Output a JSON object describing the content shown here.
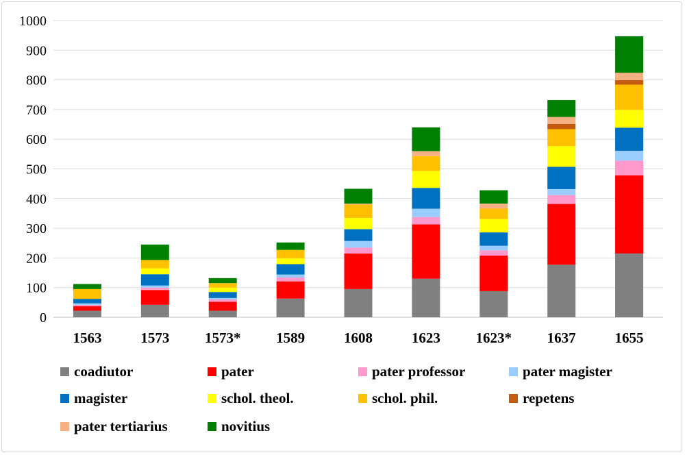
{
  "chart_data": {
    "type": "bar",
    "stacked": true,
    "title": "",
    "xlabel": "",
    "ylabel": "",
    "ylim": [
      0,
      1000
    ],
    "yticks": [
      "0",
      "100",
      "200",
      "300",
      "400",
      "500",
      "600",
      "700",
      "800",
      "900",
      "1000"
    ],
    "grid": true,
    "legend_position": "bottom",
    "categories": [
      "1563",
      "1573",
      "1573*",
      "1589",
      "1608",
      "1623",
      "1623*",
      "1637",
      "1655"
    ],
    "series": [
      {
        "name": "coadiutor",
        "color": "#808080",
        "values": [
          22,
          42,
          22,
          63,
          95,
          130,
          88,
          177,
          215
        ]
      },
      {
        "name": "pater",
        "color": "#ff0000",
        "values": [
          15,
          50,
          30,
          58,
          120,
          183,
          120,
          205,
          263
        ]
      },
      {
        "name": "pater professor",
        "color": "#ff99cc",
        "values": [
          5,
          8,
          8,
          13,
          20,
          25,
          18,
          30,
          50
        ]
      },
      {
        "name": "pater magister",
        "color": "#99ccff",
        "values": [
          5,
          7,
          5,
          10,
          22,
          28,
          15,
          20,
          33
        ]
      },
      {
        "name": "magister",
        "color": "#0070c0",
        "values": [
          15,
          38,
          20,
          35,
          40,
          70,
          45,
          75,
          78
        ]
      },
      {
        "name": "schol. theol.",
        "color": "#ffff00",
        "values": [
          0,
          20,
          15,
          20,
          38,
          57,
          45,
          70,
          60
        ]
      },
      {
        "name": "schol. phil.",
        "color": "#ffc000",
        "values": [
          33,
          28,
          15,
          28,
          45,
          50,
          35,
          57,
          85
        ]
      },
      {
        "name": "repetens",
        "color": "#c55a11",
        "values": [
          0,
          0,
          0,
          0,
          0,
          0,
          0,
          18,
          15
        ]
      },
      {
        "name": "pater tertiarius",
        "color": "#f4b183",
        "values": [
          0,
          0,
          0,
          0,
          3,
          17,
          17,
          23,
          25
        ]
      },
      {
        "name": "novitius",
        "color": "#008000",
        "values": [
          17,
          52,
          17,
          25,
          50,
          80,
          45,
          57,
          123
        ]
      }
    ]
  }
}
